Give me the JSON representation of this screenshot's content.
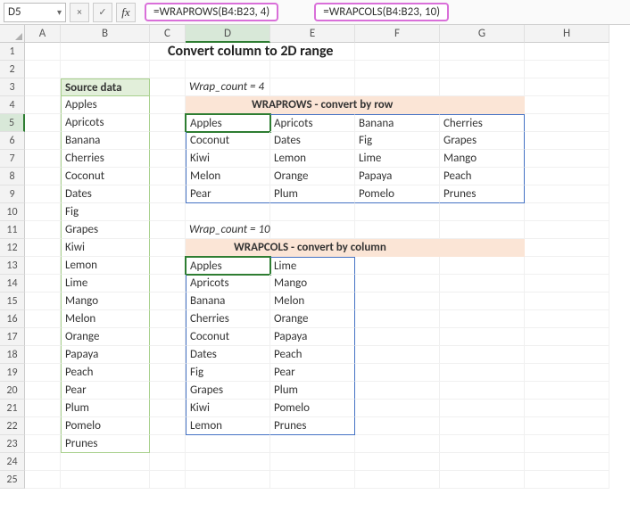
{
  "toolbar": {
    "namebox": "D5",
    "formula1": "=WRAPROWS(B4:B23, 4)",
    "formula2": "=WRAPCOLS(B4:B23, 10)",
    "btn_cancel": "×",
    "btn_check": "✓",
    "btn_fx": "fx",
    "highlight_color": "#d96fd9"
  },
  "columns": [
    "A",
    "B",
    "C",
    "D",
    "E",
    "F",
    "G",
    "H"
  ],
  "title": "Convert column to 2D range",
  "source": {
    "header": "Source data",
    "items": [
      "Apples",
      "Apricots",
      "Banana",
      "Cherries",
      "Coconut",
      "Dates",
      "Fig",
      "Grapes",
      "Kiwi",
      "Lemon",
      "Lime",
      "Mango",
      "Melon",
      "Orange",
      "Papaya",
      "Peach",
      "Pear",
      "Plum",
      "Pomelo",
      "Prunes"
    ]
  },
  "wrap1": {
    "label": "Wrap_count = 4",
    "header": "WRAPROWS - convert by row",
    "rows": [
      [
        "Apples",
        "Apricots",
        "Banana",
        "Cherries"
      ],
      [
        "Coconut",
        "Dates",
        "Fig",
        "Grapes"
      ],
      [
        "Kiwi",
        "Lemon",
        "Lime",
        "Mango"
      ],
      [
        "Melon",
        "Orange",
        "Papaya",
        "Peach"
      ],
      [
        "Pear",
        "Plum",
        "Pomelo",
        "Prunes"
      ]
    ]
  },
  "wrap2": {
    "label": "Wrap_count = 10",
    "header": "WRAPCOLS - convert by column",
    "rows": [
      [
        "Apples",
        "Lime"
      ],
      [
        "Apricots",
        "Mango"
      ],
      [
        "Banana",
        "Melon"
      ],
      [
        "Cherries",
        "Orange"
      ],
      [
        "Coconut",
        "Papaya"
      ],
      [
        "Dates",
        "Peach"
      ],
      [
        "Fig",
        "Pear"
      ],
      [
        "Grapes",
        "Plum"
      ],
      [
        "Kiwi",
        "Pomelo"
      ],
      [
        "Lemon",
        "Prunes"
      ]
    ]
  },
  "colors": {
    "source_fill": "#e2efda",
    "source_border": "#a8d08d",
    "orange_header": "#fbe5d6",
    "spill_border": "#4472c4",
    "active_border": "#2e7d32"
  }
}
